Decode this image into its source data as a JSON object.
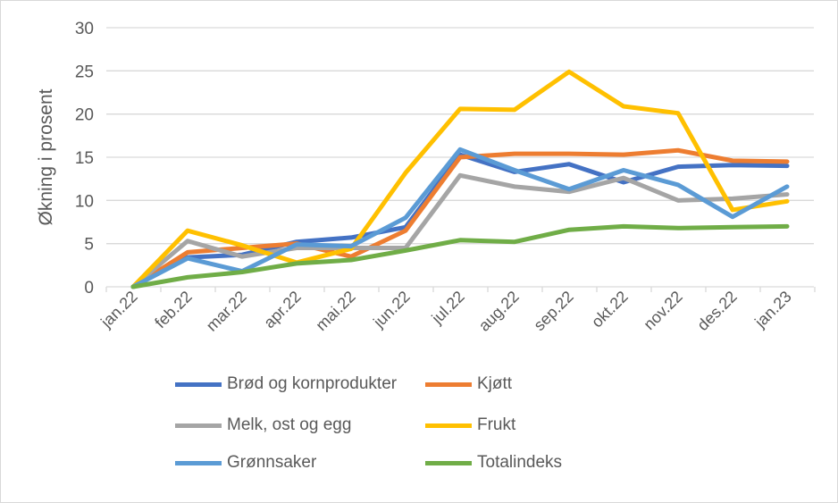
{
  "chart_data": {
    "type": "line",
    "ylabel": "Økning i prosent",
    "ylim": [
      0,
      30
    ],
    "yticks": [
      0,
      5,
      10,
      15,
      20,
      25,
      30
    ],
    "grid": true,
    "legend_position": "bottom",
    "categories": [
      "jan.22",
      "feb.22",
      "mar.22",
      "apr.22",
      "mai.22",
      "jun.22",
      "jul.22",
      "aug.22",
      "sep.22",
      "okt.22",
      "nov.22",
      "des.22",
      "jan.23"
    ],
    "series": [
      {
        "name": "Brød og kornprodukter",
        "color": "#4472c4",
        "values": [
          0,
          3.4,
          3.7,
          5.2,
          5.7,
          6.9,
          15.3,
          13.3,
          14.2,
          12.1,
          13.9,
          14.1,
          14.0
        ]
      },
      {
        "name": "Kjøtt",
        "color": "#ed7d31",
        "values": [
          0,
          4.0,
          4.5,
          5.0,
          3.5,
          6.5,
          15.0,
          15.4,
          15.4,
          15.3,
          15.8,
          14.6,
          14.5
        ]
      },
      {
        "name": "Melk, ost og egg",
        "color": "#a5a5a5",
        "values": [
          0,
          5.3,
          3.5,
          4.5,
          4.5,
          4.5,
          12.9,
          11.6,
          11.0,
          12.6,
          10.0,
          10.2,
          10.7
        ]
      },
      {
        "name": "Frukt",
        "color": "#ffc000",
        "values": [
          0,
          6.5,
          4.8,
          2.8,
          4.4,
          13.2,
          20.6,
          20.5,
          24.9,
          20.9,
          20.1,
          8.9,
          9.9
        ]
      },
      {
        "name": "Grønnsaker",
        "color": "#5b9bd5",
        "values": [
          0,
          3.3,
          1.8,
          4.9,
          4.7,
          8.0,
          15.9,
          13.5,
          11.3,
          13.5,
          11.8,
          8.1,
          11.6
        ]
      },
      {
        "name": "Totalindeks",
        "color": "#70ad47",
        "values": [
          0,
          1.1,
          1.7,
          2.7,
          3.1,
          4.2,
          5.4,
          5.2,
          6.6,
          7.0,
          6.8,
          6.9,
          7.0
        ]
      }
    ]
  }
}
